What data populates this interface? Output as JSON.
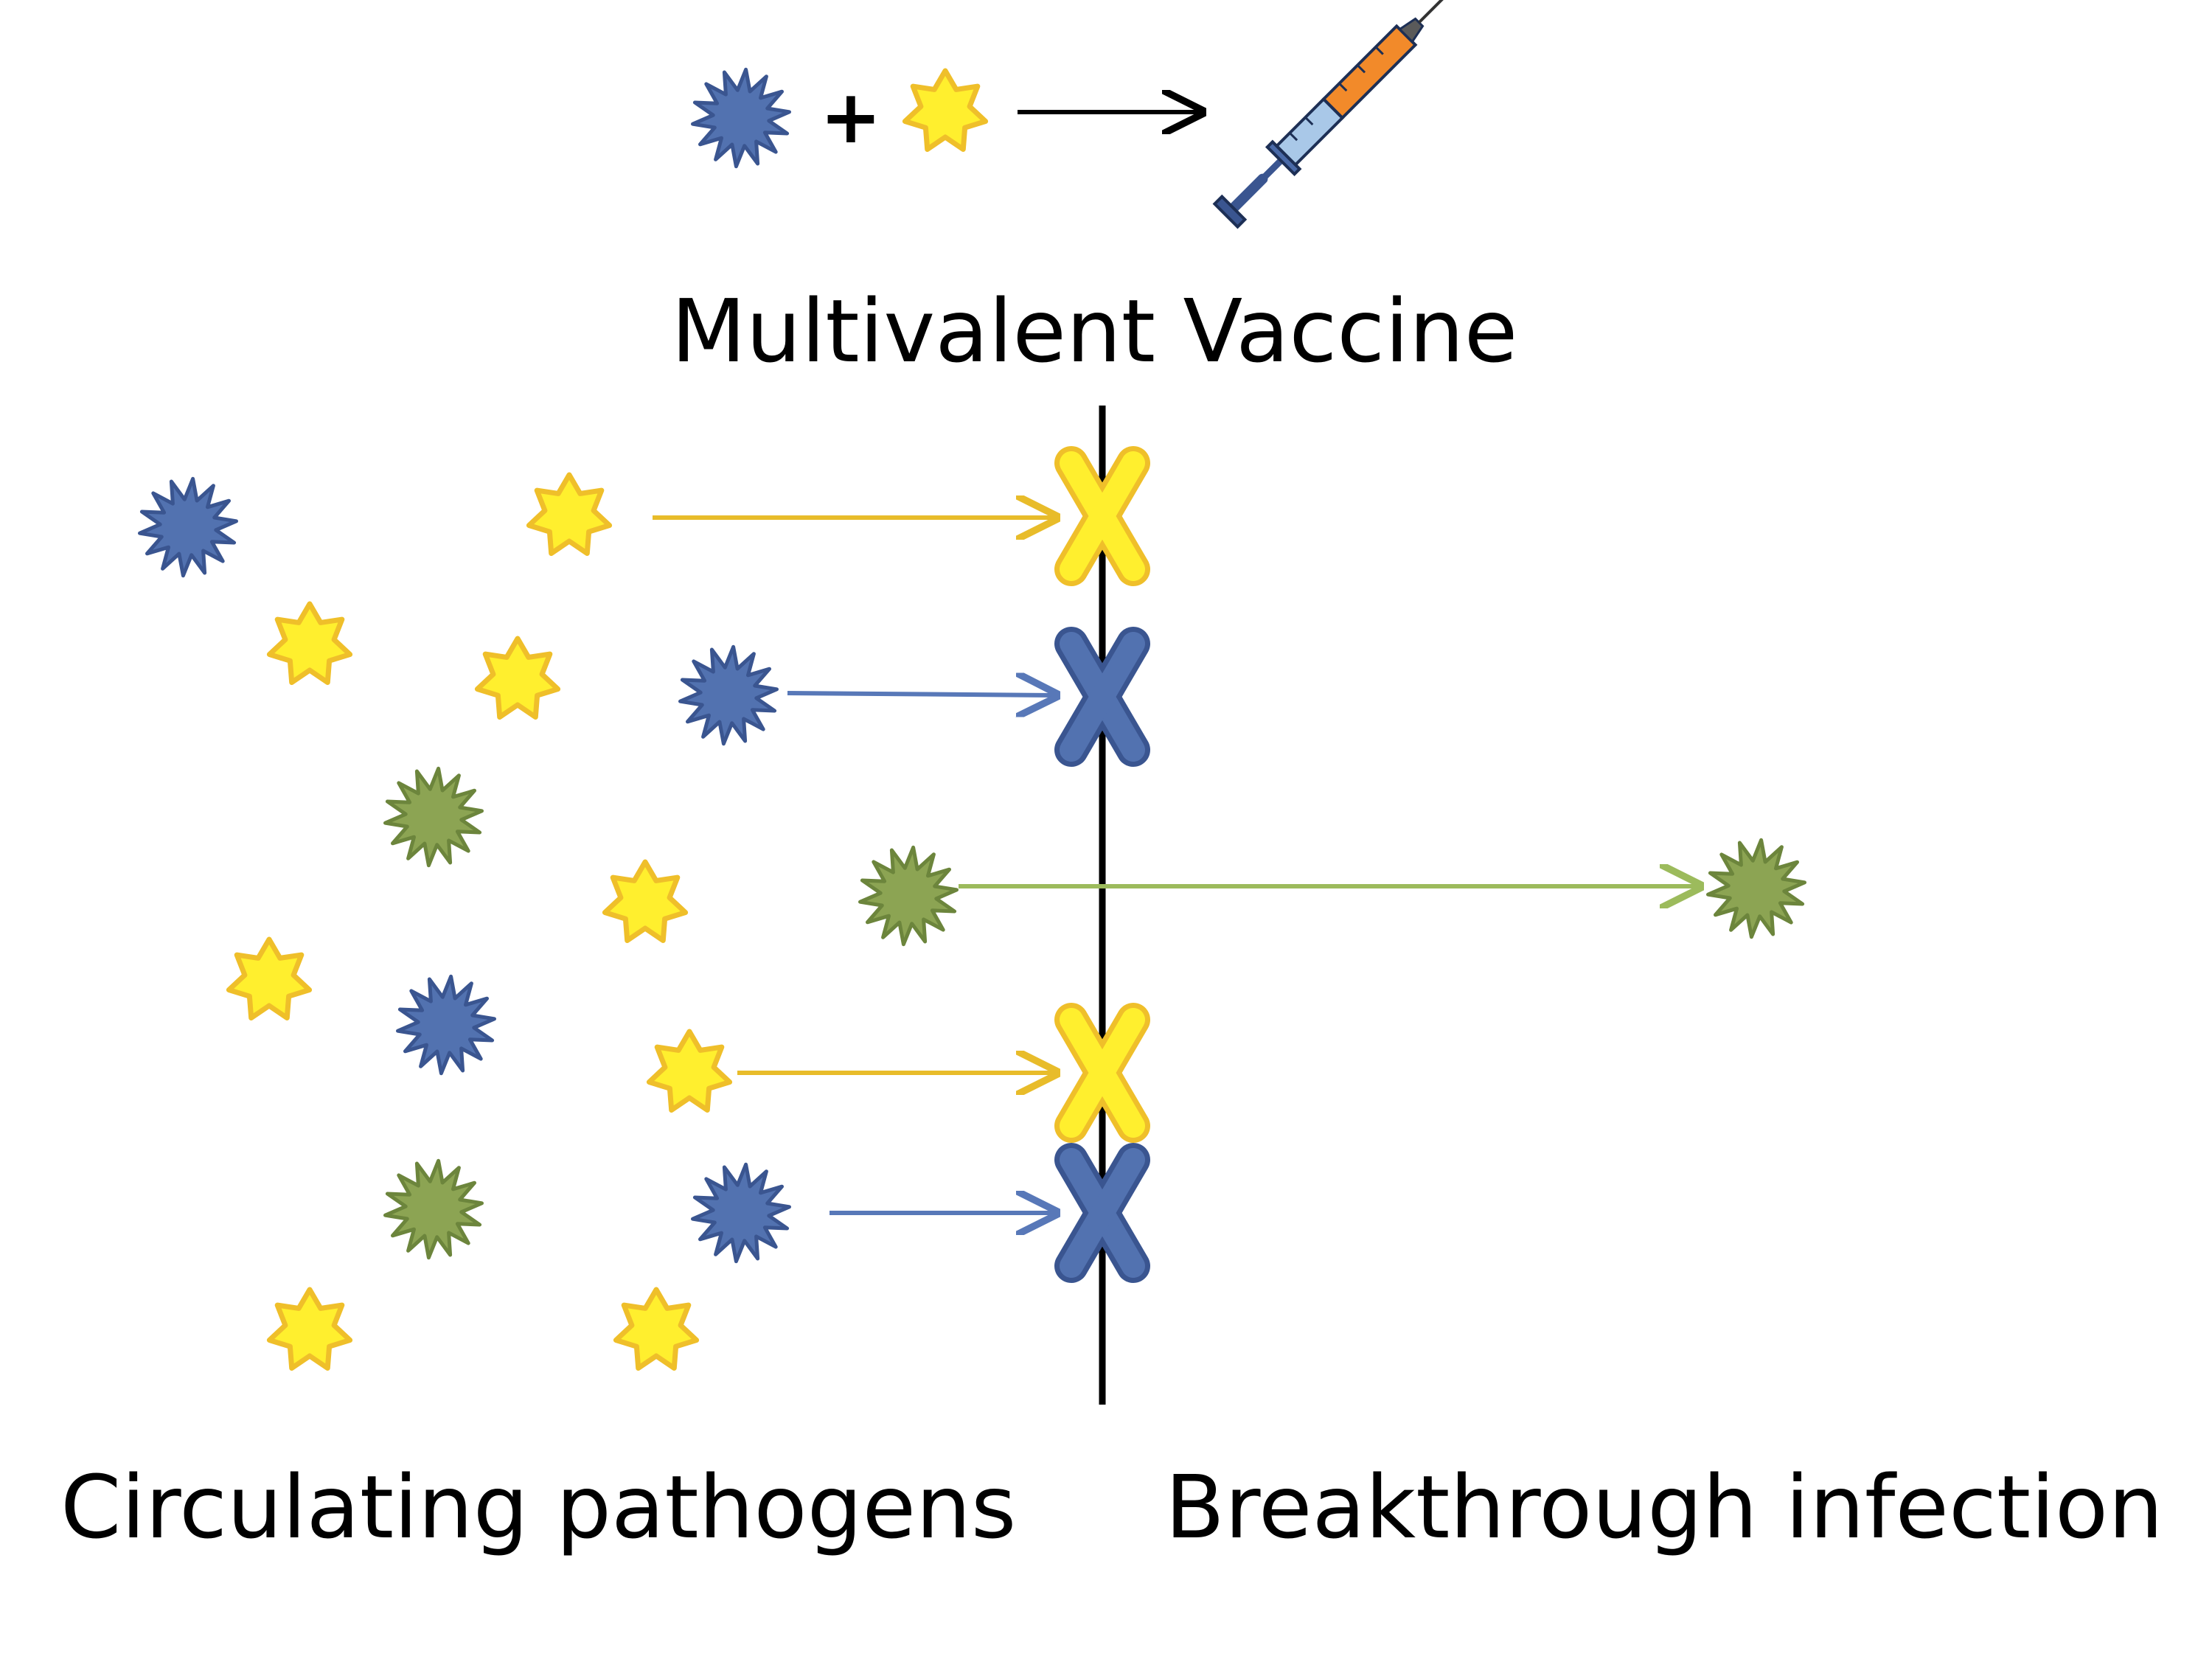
{
  "title": "Multivalent Vaccine",
  "plus_sign": "+",
  "left_caption": "Circulating pathogens",
  "right_caption": "Breakthrough infection",
  "colors": {
    "blue_fill": "#5272b0",
    "blue_stroke": "#3a5590",
    "yellow_fill": "#ffef2e",
    "yellow_stroke": "#efbf2a",
    "green_fill": "#8ca453",
    "green_stroke": "#6c853c",
    "yellow_arrow": "#e8bc2a",
    "blue_arrow": "#5878b8",
    "green_arrow": "#9cbb5c",
    "barrier": "#000000"
  },
  "legend": {
    "vaccine_components": [
      "blue-pathogen",
      "yellow-pathogen"
    ],
    "result": "syringe-icon"
  },
  "pathogens": [
    {
      "kind": "blue"
    },
    {
      "kind": "yellow"
    },
    {
      "kind": "yellow"
    },
    {
      "kind": "yellow"
    },
    {
      "kind": "blue"
    },
    {
      "kind": "green"
    },
    {
      "kind": "yellow"
    },
    {
      "kind": "green"
    },
    {
      "kind": "yellow"
    },
    {
      "kind": "blue"
    },
    {
      "kind": "yellow"
    },
    {
      "kind": "green"
    },
    {
      "kind": "blue"
    },
    {
      "kind": "yellow"
    },
    {
      "kind": "yellow"
    }
  ],
  "attempts": [
    {
      "kind": "yellow",
      "outcome": "blocked"
    },
    {
      "kind": "blue",
      "outcome": "blocked"
    },
    {
      "kind": "green",
      "outcome": "breakthrough"
    },
    {
      "kind": "yellow",
      "outcome": "blocked"
    },
    {
      "kind": "blue",
      "outcome": "blocked"
    }
  ]
}
